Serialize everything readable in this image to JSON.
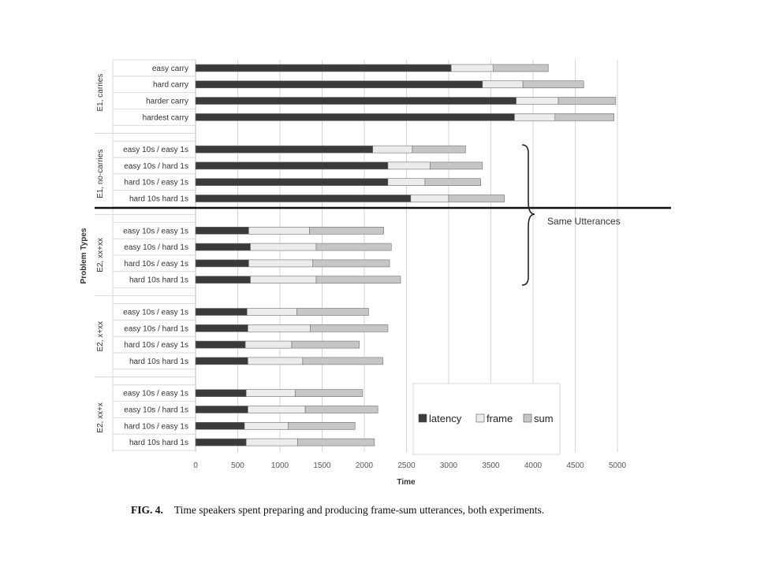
{
  "chart_data": {
    "type": "bar",
    "orientation": "horizontal",
    "stacked": true,
    "xlabel": "Time",
    "ylabel": "Problem Types",
    "xlim": [
      0,
      5000
    ],
    "xticks": [
      0,
      500,
      1000,
      1500,
      2000,
      2500,
      3000,
      3500,
      4000,
      4500,
      5000
    ],
    "grid": true,
    "legend_position": "bottom-right",
    "series": [
      {
        "name": "latency",
        "color": "#3a3a3a"
      },
      {
        "name": "frame",
        "color": "#ececec"
      },
      {
        "name": "sum",
        "color": "#c6c6c6"
      }
    ],
    "groups": [
      {
        "name": "E1, carries",
        "rows": [
          {
            "label": "easy carry",
            "latency": 3030,
            "frame": 500,
            "sum": 650
          },
          {
            "label": "hard carry",
            "latency": 3400,
            "frame": 480,
            "sum": 720
          },
          {
            "label": "harder carry",
            "latency": 3800,
            "frame": 500,
            "sum": 680
          },
          {
            "label": "hardest carry",
            "latency": 3780,
            "frame": 480,
            "sum": 700
          }
        ]
      },
      {
        "name": "E1, no-carries",
        "rows": [
          {
            "label": "easy 10s / easy 1s",
            "latency": 2100,
            "frame": 470,
            "sum": 630
          },
          {
            "label": "easy 10s / hard 1s",
            "latency": 2280,
            "frame": 500,
            "sum": 620
          },
          {
            "label": "hard 10s / easy 1s",
            "latency": 2280,
            "frame": 440,
            "sum": 660
          },
          {
            "label": "hard 10s hard 1s",
            "latency": 2550,
            "frame": 450,
            "sum": 660
          }
        ]
      },
      {
        "name": "E2, xx+xx",
        "rows": [
          {
            "label": "easy 10s / easy 1s",
            "latency": 630,
            "frame": 720,
            "sum": 880
          },
          {
            "label": "easy 10s / hard 1s",
            "latency": 650,
            "frame": 780,
            "sum": 890
          },
          {
            "label": "hard 10s / easy 1s",
            "latency": 630,
            "frame": 760,
            "sum": 910
          },
          {
            "label": "hard 10s hard 1s",
            "latency": 650,
            "frame": 780,
            "sum": 1000
          }
        ]
      },
      {
        "name": "E2, x+xx",
        "rows": [
          {
            "label": "easy 10s / easy 1s",
            "latency": 610,
            "frame": 590,
            "sum": 850
          },
          {
            "label": "easy 10s / hard 1s",
            "latency": 620,
            "frame": 740,
            "sum": 920
          },
          {
            "label": "hard 10s / easy 1s",
            "latency": 590,
            "frame": 550,
            "sum": 800
          },
          {
            "label": "hard 10s hard 1s",
            "latency": 620,
            "frame": 650,
            "sum": 950
          }
        ]
      },
      {
        "name": "E2, xx+x",
        "rows": [
          {
            "label": "easy 10s / easy 1s",
            "latency": 600,
            "frame": 580,
            "sum": 800
          },
          {
            "label": "easy 10s / hard 1s",
            "latency": 620,
            "frame": 680,
            "sum": 860
          },
          {
            "label": "hard 10s / easy 1s",
            "latency": 580,
            "frame": 520,
            "sum": 790
          },
          {
            "label": "hard 10s hard 1s",
            "latency": 600,
            "frame": 610,
            "sum": 910
          }
        ]
      }
    ],
    "annotations": [
      {
        "text": "Same Utterances"
      }
    ]
  },
  "caption": {
    "figure_label": "FIG. 4.",
    "text": "Time speakers spent preparing and producing frame-sum utterances, both experiments."
  }
}
